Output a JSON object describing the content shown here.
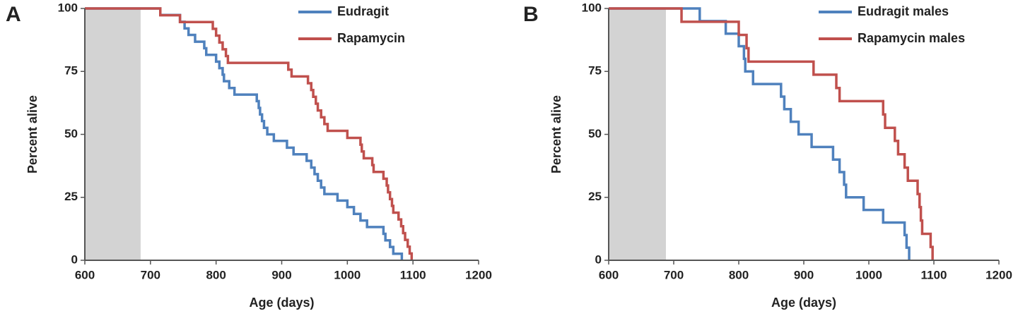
{
  "chart_data": [
    {
      "type": "line",
      "step": true,
      "panel_label": "A",
      "xlabel": "Age (days)",
      "ylabel": "Percent alive",
      "xlim": [
        600,
        1200
      ],
      "xticks": [
        600,
        700,
        800,
        900,
        1000,
        1100,
        1200
      ],
      "ylim": [
        0,
        100
      ],
      "yticks": [
        0,
        25,
        50,
        75,
        100
      ],
      "shaded_range": [
        600,
        685
      ],
      "shade_color": "#d3d3d3",
      "legend": "upper right",
      "series": [
        {
          "name": "Eudragit",
          "color": "#4f81bd",
          "x": [
            600,
            715,
            745,
            752,
            758,
            768,
            782,
            785,
            800,
            805,
            810,
            812,
            820,
            828,
            862,
            865,
            867,
            870,
            873,
            878,
            888,
            908,
            918,
            938,
            945,
            950,
            955,
            960,
            965,
            985,
            1000,
            1010,
            1020,
            1030,
            1055,
            1058,
            1065,
            1070,
            1083
          ],
          "values": [
            100,
            97.4,
            94.7,
            92.1,
            89.5,
            86.8,
            84.2,
            81.6,
            78.9,
            76.3,
            73.7,
            71.1,
            68.4,
            65.8,
            63.2,
            60.5,
            57.9,
            55.3,
            52.6,
            50,
            47.4,
            44.7,
            42.1,
            39.5,
            36.8,
            34.2,
            31.6,
            28.9,
            26.3,
            23.7,
            21.1,
            18.4,
            15.8,
            13.2,
            10.5,
            7.9,
            5.3,
            2.6,
            0
          ]
        },
        {
          "name": "Rapamycin",
          "color": "#c0504d",
          "x": [
            600,
            715,
            745,
            795,
            800,
            805,
            810,
            815,
            818,
            910,
            915,
            940,
            945,
            948,
            952,
            955,
            960,
            965,
            970,
            1000,
            1020,
            1022,
            1025,
            1038,
            1040,
            1055,
            1060,
            1062,
            1065,
            1068,
            1070,
            1078,
            1082,
            1085,
            1088,
            1092,
            1095,
            1098
          ],
          "values": [
            100,
            97.3,
            94.6,
            91.9,
            89.2,
            86.5,
            83.8,
            81.1,
            78.4,
            75.7,
            73,
            70.3,
            67.6,
            64.9,
            62.2,
            59.5,
            56.8,
            54.1,
            51.4,
            48.6,
            45.9,
            43.2,
            40.5,
            37.8,
            35.1,
            32.4,
            29.7,
            27,
            24.3,
            21.6,
            18.9,
            16.2,
            13.5,
            10.8,
            8.1,
            5.4,
            2.7,
            0
          ]
        }
      ]
    },
    {
      "type": "line",
      "step": true,
      "panel_label": "B",
      "xlabel": "Age (days)",
      "ylabel": "Percent alive",
      "xlim": [
        600,
        1200
      ],
      "xticks": [
        600,
        700,
        800,
        900,
        1000,
        1100,
        1200
      ],
      "ylim": [
        0,
        100
      ],
      "yticks": [
        0,
        25,
        50,
        75,
        100
      ],
      "shaded_range": [
        600,
        688
      ],
      "shade_color": "#d3d3d3",
      "legend": "upper right",
      "series": [
        {
          "name": "Eudragit males",
          "color": "#4f81bd",
          "x": [
            600,
            740,
            780,
            800,
            808,
            810,
            822,
            865,
            870,
            880,
            892,
            912,
            945,
            955,
            962,
            965,
            992,
            1022,
            1055,
            1058,
            1062
          ],
          "values": [
            100,
            95,
            90,
            85,
            80,
            75,
            70,
            65,
            60,
            55,
            50,
            45,
            40,
            35,
            30,
            25,
            20,
            15,
            10,
            5,
            0
          ]
        },
        {
          "name": "Rapamycin males",
          "color": "#c0504d",
          "x": [
            600,
            712,
            800,
            812,
            815,
            915,
            950,
            955,
            1022,
            1025,
            1040,
            1045,
            1055,
            1060,
            1075,
            1078,
            1080,
            1082,
            1095,
            1098
          ],
          "values": [
            100,
            94.7,
            89.5,
            84.2,
            78.9,
            73.7,
            68.4,
            63.2,
            57.9,
            52.6,
            47.4,
            42.1,
            36.8,
            31.6,
            26.3,
            21.1,
            15.8,
            10.5,
            5.3,
            0
          ]
        }
      ]
    }
  ]
}
